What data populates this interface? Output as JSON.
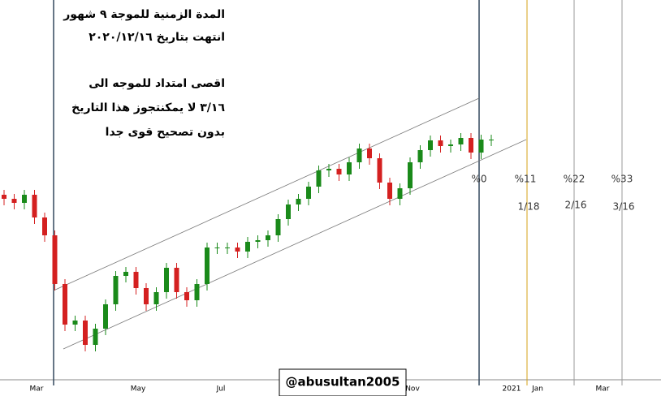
{
  "chart_data": {
    "type": "candlestick",
    "annotations": [
      "المدة الزمنية للموجة ٩ شهور",
      "انتهت  بتاريخ ٢٠٢٠/١٢/١٦",
      "اقصى امتداد للموجه الى",
      "٣/١٦ لا يمكنتجوز هذا التاريخ",
      "بدون تصحيح قوى جدا"
    ],
    "fib_levels": [
      "%0",
      "%11",
      "%22",
      "%33"
    ],
    "target_dates": [
      "1/18",
      "2/16",
      "3/16"
    ],
    "x_labels": [
      "Mar",
      "May",
      "Jul",
      "Nov",
      "2021",
      "Jan",
      "Mar"
    ],
    "watermark": "@abusultan2005",
    "ylim": [
      0,
      470
    ],
    "up_color": "#1a8a1a",
    "down_color": "#d42020",
    "open": [
      230,
      225,
      220,
      230,
      202,
      180,
      120,
      70,
      75,
      45,
      65,
      95,
      130,
      135,
      115,
      95,
      110,
      140,
      110,
      100,
      120,
      165,
      165,
      165,
      160,
      172,
      174,
      180,
      200,
      218,
      225,
      240,
      260,
      262,
      255,
      270,
      287,
      275,
      245,
      225,
      238,
      270,
      285,
      297,
      290,
      292,
      300,
      282,
      298
    ],
    "high": [
      236,
      231,
      236,
      236,
      208,
      186,
      126,
      81,
      81,
      71,
      101,
      136,
      141,
      141,
      121,
      116,
      146,
      146,
      116,
      126,
      171,
      171,
      171,
      171,
      178,
      180,
      186,
      206,
      224,
      231,
      246,
      266,
      268,
      268,
      276,
      293,
      293,
      281,
      251,
      244,
      276,
      291,
      303,
      303,
      298,
      306,
      306,
      304,
      304
    ],
    "low": [
      217,
      212,
      212,
      194,
      172,
      112,
      62,
      62,
      37,
      37,
      57,
      87,
      122,
      107,
      87,
      87,
      102,
      102,
      92,
      92,
      112,
      157,
      157,
      152,
      152,
      164,
      166,
      172,
      192,
      210,
      217,
      232,
      252,
      247,
      247,
      262,
      267,
      237,
      217,
      217,
      230,
      262,
      277,
      282,
      282,
      284,
      274,
      274,
      290
    ],
    "close": [
      225,
      220,
      230,
      202,
      180,
      120,
      70,
      75,
      45,
      65,
      95,
      130,
      135,
      115,
      95,
      110,
      140,
      110,
      100,
      120,
      165,
      165,
      165,
      160,
      172,
      174,
      180,
      200,
      218,
      225,
      240,
      260,
      262,
      255,
      270,
      287,
      275,
      245,
      225,
      238,
      270,
      285,
      297,
      290,
      292,
      300,
      282,
      298,
      298
    ]
  }
}
